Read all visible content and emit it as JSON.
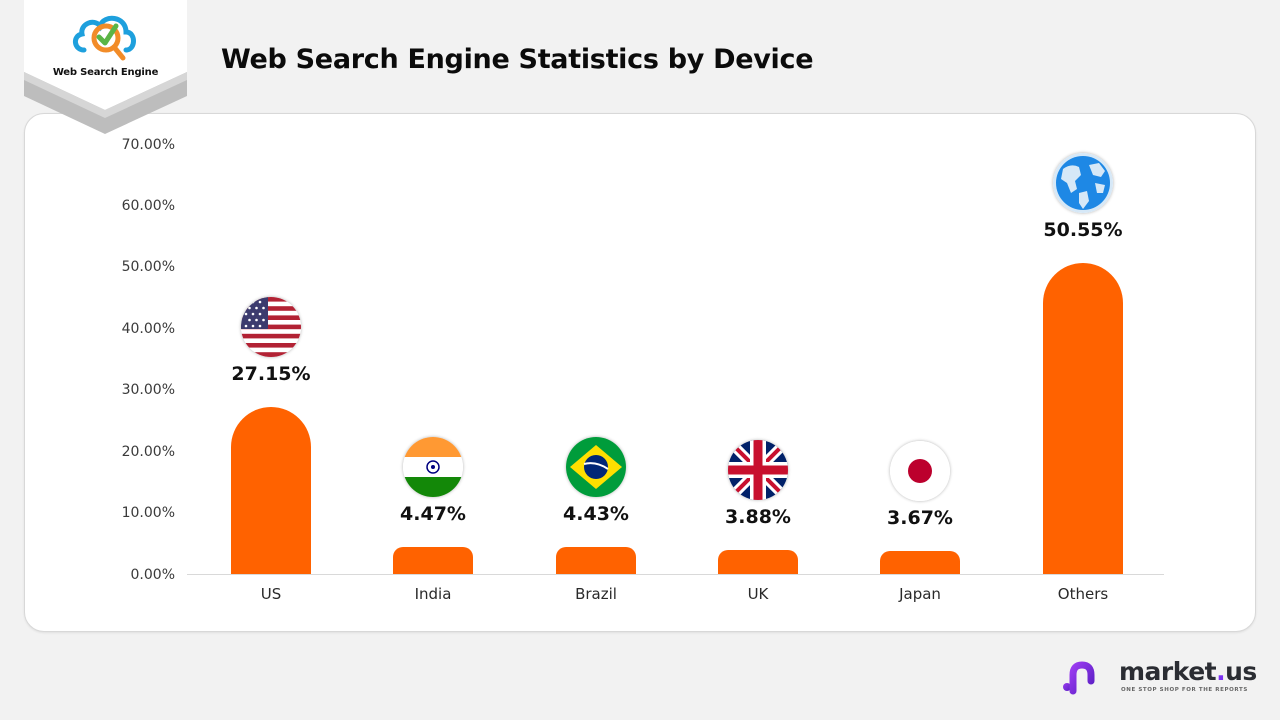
{
  "logo": {
    "label": "Web Search Engine",
    "icon": "cloud-magnifier-check-icon"
  },
  "header": {
    "title": "Web Search Engine Statistics by Device"
  },
  "brand": {
    "name_part1": "market",
    "name_dot": ".",
    "name_part2": "us",
    "tagline": "ONE STOP SHOP FOR THE REPORTS",
    "icon": "market-us-logo-icon"
  },
  "colors": {
    "bar": "#ff6200",
    "background": "#f2f2f2",
    "card": "#ffffff",
    "brand_purple": "#7b2ff2"
  },
  "chart_data": {
    "type": "bar",
    "title": "Web Search Engine Statistics by Device",
    "xlabel": "",
    "ylabel": "",
    "categories": [
      "US",
      "India",
      "Brazil",
      "UK",
      "Japan",
      "Others"
    ],
    "values": [
      27.15,
      4.47,
      4.43,
      3.88,
      3.67,
      50.55
    ],
    "value_labels": [
      "27.15%",
      "4.47%",
      "4.43%",
      "3.88%",
      "3.67%",
      "50.55%"
    ],
    "icons": [
      "us-flag-icon",
      "india-flag-icon",
      "brazil-flag-icon",
      "uk-flag-icon",
      "japan-flag-icon",
      "globe-icon"
    ],
    "ylim": [
      0,
      70
    ],
    "yticks": [
      "0.00%",
      "10.00%",
      "20.00%",
      "30.00%",
      "40.00%",
      "50.00%",
      "60.00%",
      "70.00%"
    ],
    "grid": false,
    "legend": null
  }
}
